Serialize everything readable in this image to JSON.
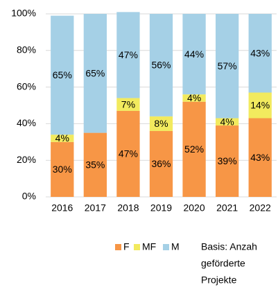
{
  "chart_data": {
    "type": "stacked_bar",
    "categories": [
      "2016",
      "2017",
      "2018",
      "2019",
      "2020",
      "2021",
      "2022"
    ],
    "series": [
      {
        "name": "F",
        "color": "#f79646",
        "values": [
          30,
          35,
          47,
          36,
          52,
          39,
          43
        ],
        "value_labels": [
          "30%",
          "35%",
          "47%",
          "36%",
          "52%",
          "39%",
          "43%"
        ]
      },
      {
        "name": "MF",
        "color": "#f2ea5e",
        "values": [
          4,
          0,
          7,
          8,
          4,
          4,
          14
        ],
        "value_labels": [
          "4%",
          null,
          "7%",
          "8%",
          "4%",
          "4%",
          "14%"
        ]
      },
      {
        "name": "M",
        "color": "#a5d0e6",
        "values": [
          65,
          65,
          47,
          56,
          44,
          57,
          43
        ],
        "value_labels": [
          "65%",
          "65%",
          "47%",
          "56%",
          "44%",
          "57%",
          "43%"
        ]
      }
    ],
    "ylim": [
      0,
      100
    ],
    "yticks": [
      {
        "value": 0,
        "label": "0%"
      },
      {
        "value": 20,
        "label": "20%"
      },
      {
        "value": 40,
        "label": "40%"
      },
      {
        "value": 60,
        "label": "60%"
      },
      {
        "value": 80,
        "label": "80%"
      },
      {
        "value": 100,
        "label": "100%"
      }
    ],
    "grid": true,
    "note": [
      "Basis: Anzah",
      "geförderte",
      "Projekte"
    ]
  }
}
